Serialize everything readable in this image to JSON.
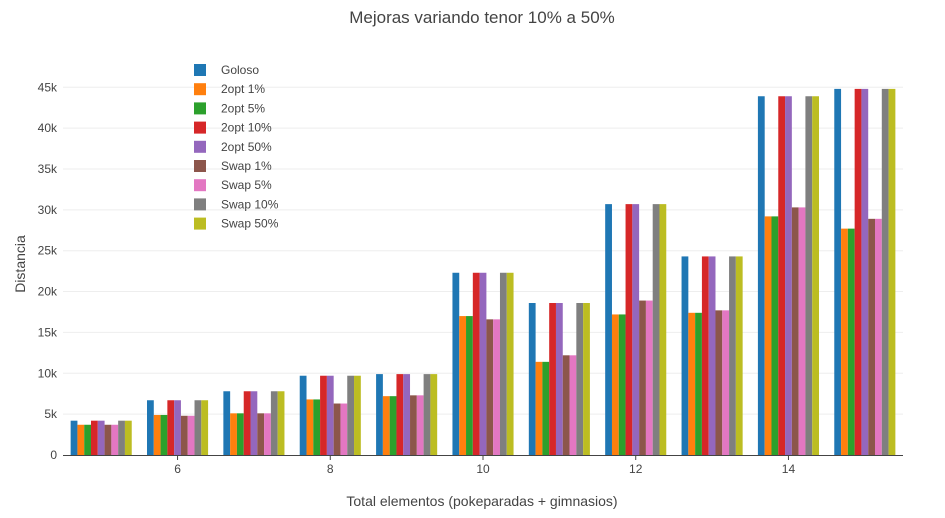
{
  "chart_data": {
    "type": "bar",
    "title": "Mejoras variando tenor 10% a 50%",
    "xlabel": "Total elementos (pokeparadas + gimnasios)",
    "ylabel": "Distancia",
    "x": [
      5,
      6,
      7,
      8,
      9,
      10,
      11,
      12,
      13,
      14,
      15
    ],
    "xtick_values": [
      6,
      8,
      10,
      12,
      14
    ],
    "xtick_labels": [
      "6",
      "8",
      "10",
      "12",
      "14"
    ],
    "xlim": [
      4.5,
      15.5
    ],
    "ylim": [
      0,
      46500
    ],
    "ytick_values": [
      0,
      5000,
      10000,
      15000,
      20000,
      25000,
      30000,
      35000,
      40000,
      45000
    ],
    "ytick_labels": [
      "0",
      "5k",
      "10k",
      "15k",
      "20k",
      "25k",
      "30k",
      "35k",
      "40k",
      "45k"
    ],
    "grid": true,
    "legend_position": "top-left",
    "series": [
      {
        "name": "Goloso",
        "color": "#1f77b4",
        "values": [
          4200,
          6700,
          7800,
          9700,
          9900,
          22300,
          18600,
          30700,
          24300,
          43900,
          44800
        ]
      },
      {
        "name": "2opt 1%",
        "color": "#ff7f0e",
        "values": [
          3700,
          4900,
          5100,
          6800,
          7200,
          17000,
          11400,
          17200,
          17400,
          29200,
          27700
        ]
      },
      {
        "name": "2opt 5%",
        "color": "#2ca02c",
        "values": [
          3700,
          4900,
          5100,
          6800,
          7200,
          17000,
          11400,
          17200,
          17400,
          29200,
          27700
        ]
      },
      {
        "name": "2opt 10%",
        "color": "#d62728",
        "values": [
          4200,
          6700,
          7800,
          9700,
          9900,
          22300,
          18600,
          30700,
          24300,
          43900,
          44800
        ]
      },
      {
        "name": "2opt 50%",
        "color": "#9467bd",
        "values": [
          4200,
          6700,
          7800,
          9700,
          9900,
          22300,
          18600,
          30700,
          24300,
          43900,
          44800
        ]
      },
      {
        "name": "Swap 1%",
        "color": "#8c564b",
        "values": [
          3700,
          4800,
          5100,
          6300,
          7300,
          16600,
          12200,
          18900,
          17700,
          30300,
          28900
        ]
      },
      {
        "name": "Swap 5%",
        "color": "#e377c2",
        "values": [
          3700,
          4800,
          5100,
          6300,
          7300,
          16600,
          12200,
          18900,
          17700,
          30300,
          28900
        ]
      },
      {
        "name": "Swap 10%",
        "color": "#7f7f7f",
        "values": [
          4200,
          6700,
          7800,
          9700,
          9900,
          22300,
          18600,
          30700,
          24300,
          43900,
          44800
        ]
      },
      {
        "name": "Swap 50%",
        "color": "#bcbd22",
        "values": [
          4200,
          6700,
          7800,
          9700,
          9900,
          22300,
          18600,
          30700,
          24300,
          43900,
          44800
        ]
      }
    ]
  }
}
